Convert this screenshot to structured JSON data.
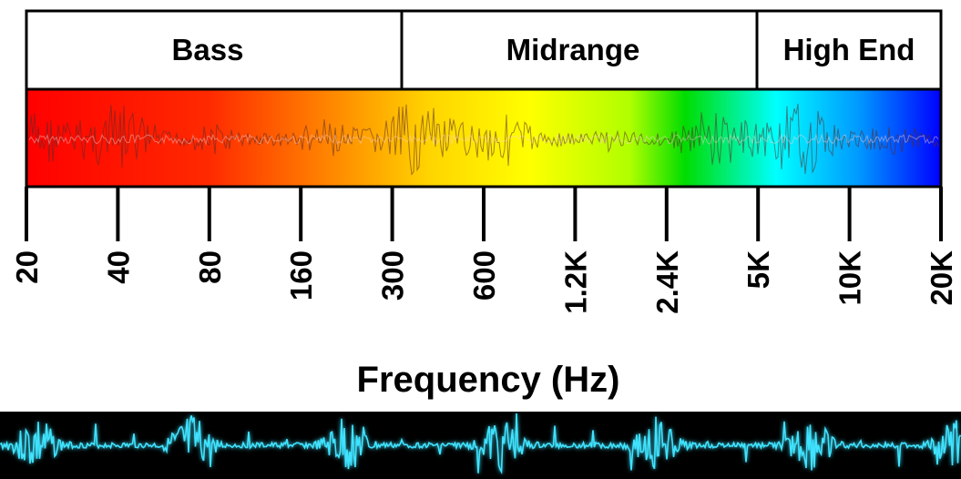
{
  "bands": [
    {
      "label": "Bass",
      "from_hz": 20,
      "to_hz": 300
    },
    {
      "label": "Midrange",
      "from_hz": 300,
      "to_hz": 5000
    },
    {
      "label": "High End",
      "from_hz": 5000,
      "to_hz": 20000
    }
  ],
  "axis": {
    "title": "Frequency (Hz)",
    "scale": "log",
    "ticks": [
      {
        "label": "20",
        "hz": 20
      },
      {
        "label": "40",
        "hz": 40
      },
      {
        "label": "80",
        "hz": 80
      },
      {
        "label": "160",
        "hz": 160
      },
      {
        "label": "300",
        "hz": 300
      },
      {
        "label": "600",
        "hz": 600
      },
      {
        "label": "1.2K",
        "hz": 1200
      },
      {
        "label": "2.4K",
        "hz": 2400
      },
      {
        "label": "5K",
        "hz": 5000
      },
      {
        "label": "10K",
        "hz": 10000
      },
      {
        "label": "20K",
        "hz": 20000
      }
    ]
  },
  "spectrum_colors": [
    "#ff0000",
    "#ff2200",
    "#ff7a00",
    "#ffd000",
    "#ffff00",
    "#b8ff00",
    "#00dd00",
    "#00ffff",
    "#00a8ff",
    "#0000ff"
  ],
  "waveform_color": "#3fe3ff"
}
